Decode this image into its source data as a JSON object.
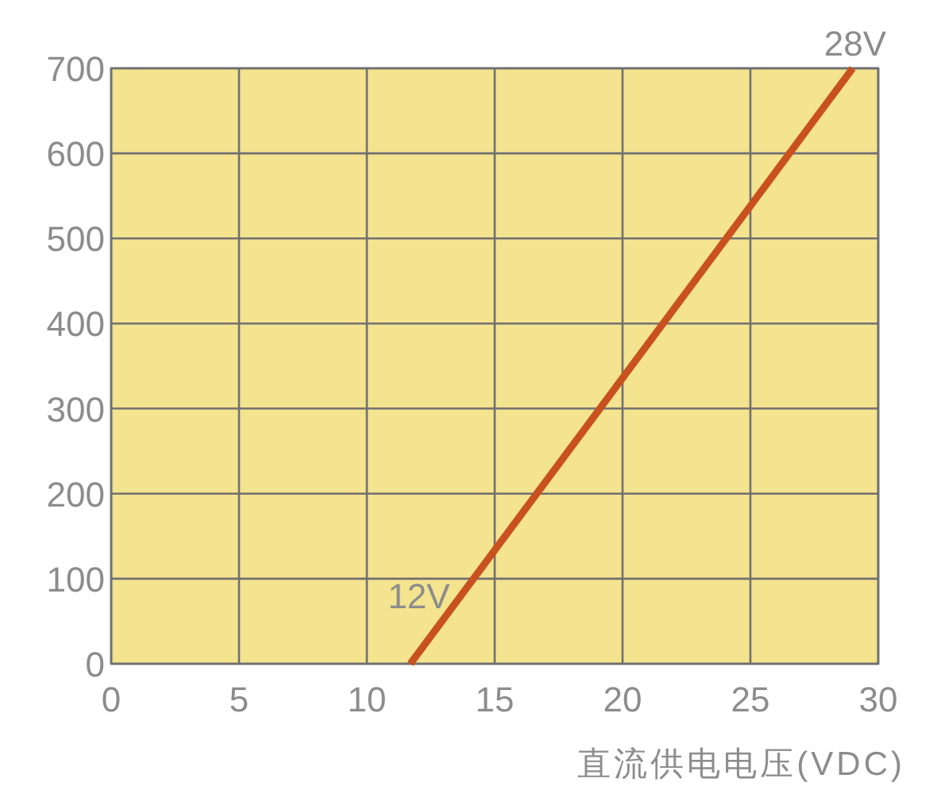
{
  "chart_data": {
    "type": "line",
    "xlabel": "直流供电电压(VDC)",
    "x": [
      11.7,
      29
    ],
    "series": [
      {
        "color": "#c9511f",
        "values": [
          0,
          700
        ]
      }
    ],
    "xlim": [
      0,
      30
    ],
    "ylim": [
      0,
      700
    ],
    "xticks": [
      0,
      5,
      10,
      15,
      20,
      25,
      30
    ],
    "yticks": [
      0,
      100,
      200,
      300,
      400,
      500,
      600,
      700
    ],
    "grid": true,
    "annotations": [
      {
        "text": "12V",
        "x": 13.5,
        "y": 73
      },
      {
        "text": "28V",
        "x": 29,
        "y": 700
      }
    ]
  }
}
